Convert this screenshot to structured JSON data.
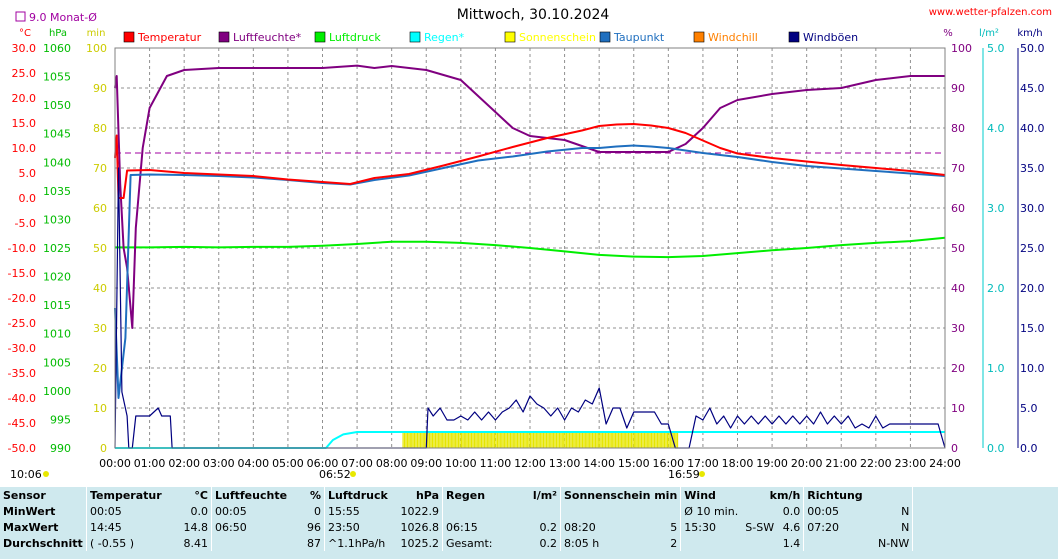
{
  "header": {
    "title": "Mittwoch, 30.10.2024",
    "site": "www.wetter-pfalzen.com",
    "monthly_avg": "9.0 Monat-Ø"
  },
  "chart_data": {
    "type": "line",
    "title": "Mittwoch, 30.10.2024",
    "x_ticks": [
      "00:00",
      "01:00",
      "02:00",
      "03:00",
      "04:00",
      "05:00",
      "06:00",
      "07:00",
      "08:00",
      "09:00",
      "10:00",
      "11:00",
      "12:00",
      "13:00",
      "14:00",
      "15:00",
      "16:00",
      "17:00",
      "18:00",
      "19:00",
      "20:00",
      "21:00",
      "22:00",
      "23:00",
      "24:00"
    ],
    "axes": {
      "temp": {
        "unit": "°C",
        "min": -50,
        "max": 30,
        "ticks": [
          "30.0",
          "25.0",
          "20.0",
          "15.0",
          "10.0",
          "5.0",
          "0.0",
          "-5.0",
          "-10.0",
          "-15.0",
          "-20.0",
          "-25.0",
          "-30.0",
          "-35.0",
          "-40.0",
          "-45.0",
          "-50.0"
        ]
      },
      "pressure": {
        "unit": "hPa",
        "min": 990,
        "max": 1060,
        "ticks": [
          "1060",
          "1055",
          "1050",
          "1045",
          "1040",
          "1035",
          "1030",
          "1025",
          "1020",
          "1015",
          "1010",
          "1005",
          "1000",
          "995",
          "990"
        ]
      },
      "sun_min": {
        "unit": "min",
        "min": 0,
        "max": 100,
        "ticks": [
          "100",
          "90",
          "80",
          "70",
          "60",
          "50",
          "40",
          "30",
          "20",
          "10",
          "0"
        ]
      },
      "humidity": {
        "unit": "%",
        "min": 0,
        "max": 100,
        "ticks": [
          "100",
          "90",
          "80",
          "70",
          "60",
          "50",
          "40",
          "30",
          "20",
          "10",
          "0"
        ]
      },
      "rain": {
        "unit": "l/m²",
        "min": 0,
        "max": 5,
        "ticks": [
          "5.0",
          "4.0",
          "3.0",
          "2.0",
          "1.0",
          "0.0"
        ]
      },
      "wind": {
        "unit": "km/h",
        "min": 0,
        "max": 50,
        "ticks": [
          "50.0",
          "45.0",
          "40.0",
          "35.0",
          "30.0",
          "25.0",
          "20.0",
          "15.0",
          "10.0",
          "5.0",
          "0.0"
        ]
      }
    },
    "monthly_avg_temp": 9.0,
    "legend": [
      {
        "name": "Temperatur",
        "color": "#ff0000"
      },
      {
        "name": "Luftfeuchte*",
        "color": "#800080"
      },
      {
        "name": "Luftdruck",
        "color": "#00ee00"
      },
      {
        "name": "Regen*",
        "color": "#00ffff"
      },
      {
        "name": "Sonnenschein",
        "color": "#ffff00"
      },
      {
        "name": "Taupunkt",
        "color": "#1f6fbf"
      },
      {
        "name": "Windchill",
        "color": "#ff8000"
      },
      {
        "name": "Windböen",
        "color": "#000080"
      }
    ],
    "series": [
      {
        "name": "Temperatur",
        "axis": "temp",
        "color": "#ff0000",
        "x": [
          0,
          0.05,
          0.1,
          0.25,
          0.35,
          1,
          2,
          3,
          4,
          5,
          6,
          6.8,
          7.5,
          8.5,
          9.5,
          10.5,
          11.5,
          12.5,
          13.5,
          14,
          14.5,
          15,
          15.5,
          16,
          16.5,
          17,
          17.5,
          18,
          19,
          20,
          21,
          22,
          23,
          24
        ],
        "y": [
          8,
          12.5,
          0,
          0,
          5.5,
          5.6,
          5.0,
          4.7,
          4.4,
          3.7,
          3.2,
          2.8,
          4.0,
          4.8,
          6.5,
          8.3,
          10.2,
          12.0,
          13.5,
          14.4,
          14.7,
          14.8,
          14.5,
          14.0,
          13.0,
          11.5,
          10.0,
          8.9,
          8.0,
          7.3,
          6.6,
          6.0,
          5.4,
          4.6
        ]
      },
      {
        "name": "Luftfeuchte*",
        "axis": "humidity",
        "color": "#800080",
        "x": [
          0,
          0.05,
          0.15,
          0.25,
          0.35,
          0.5,
          0.6,
          0.8,
          1.0,
          1.5,
          2,
          3,
          4,
          6,
          7.0,
          7.5,
          8,
          9,
          10,
          11,
          11.5,
          12,
          12.5,
          13,
          14,
          15,
          16,
          16.5,
          17,
          17.5,
          18,
          19,
          20,
          21,
          22,
          23,
          24
        ],
        "y": [
          90,
          93,
          66,
          50,
          45,
          30,
          55,
          75,
          85,
          93,
          94.5,
          95,
          95,
          95,
          95.6,
          95,
          95.5,
          94.5,
          92,
          84,
          80,
          78,
          77.5,
          77,
          74,
          74,
          74,
          76,
          80,
          85,
          87,
          88.5,
          89.5,
          90,
          92,
          93,
          93
        ]
      },
      {
        "name": "Luftdruck",
        "axis": "pressure",
        "color": "#00ee00",
        "x": [
          0,
          1,
          2,
          3,
          4,
          5,
          6,
          7,
          8,
          9,
          10,
          11,
          12,
          13,
          14,
          15,
          16,
          17,
          18,
          19,
          20,
          21,
          22,
          23,
          24
        ],
        "y": [
          1025.1,
          1025.1,
          1025.2,
          1025.1,
          1025.2,
          1025.2,
          1025.4,
          1025.7,
          1026.1,
          1026.1,
          1025.9,
          1025.5,
          1025.0,
          1024.4,
          1023.8,
          1023.5,
          1023.4,
          1023.6,
          1024.1,
          1024.6,
          1025.0,
          1025.5,
          1025.9,
          1026.2,
          1026.8
        ]
      },
      {
        "name": "Taupunkt",
        "axis": "temp",
        "color": "#1f6fbf",
        "x": [
          0,
          0.1,
          0.3,
          0.45,
          1,
          2,
          3,
          4,
          5,
          6,
          6.8,
          7.5,
          8.5,
          9.5,
          10.5,
          11.5,
          12.5,
          13.5,
          14,
          14.5,
          15,
          15.5,
          16,
          17,
          18,
          19,
          20,
          21,
          22,
          23,
          24
        ],
        "y": [
          -22,
          -40,
          -28,
          4.6,
          4.7,
          4.6,
          4.4,
          4.1,
          3.6,
          3.0,
          2.7,
          3.6,
          4.5,
          6.0,
          7.5,
          8.3,
          9.3,
          10.0,
          10.0,
          10.3,
          10.5,
          10.3,
          10.0,
          9.0,
          8.2,
          7.2,
          6.4,
          5.9,
          5.4,
          4.9,
          4.4
        ]
      },
      {
        "name": "Regen*",
        "axis": "rain",
        "color": "#00ffff",
        "x": [
          0,
          6.1,
          6.3,
          6.6,
          7.0,
          7.5,
          8,
          9,
          10,
          11,
          12,
          13,
          14,
          15,
          16,
          17,
          18,
          19,
          20,
          21,
          22,
          23,
          24
        ],
        "y": [
          0,
          0,
          0.1,
          0.17,
          0.2,
          0.2,
          0.2,
          0.2,
          0.2,
          0.2,
          0.2,
          0.2,
          0.2,
          0.2,
          0.2,
          0.2,
          0.2,
          0.2,
          0.2,
          0.2,
          0.2,
          0.2,
          0.2
        ]
      },
      {
        "name": "Windböen",
        "axis": "wind",
        "color": "#000080",
        "x": [
          0,
          0.1,
          0.2,
          0.35,
          0.4,
          0.5,
          0.6,
          0.9,
          1,
          1.25,
          1.35,
          1.6,
          1.65,
          2,
          9,
          9.05,
          9.2,
          9.4,
          9.6,
          9.8,
          10,
          10.2,
          10.4,
          10.6,
          10.8,
          11,
          11.2,
          11.4,
          11.6,
          11.8,
          12,
          12.2,
          12.4,
          12.6,
          12.8,
          13,
          13.2,
          13.4,
          13.6,
          13.8,
          14,
          14.2,
          14.4,
          14.6,
          14.8,
          15,
          15.2,
          15.4,
          15.6,
          15.8,
          16,
          16.2,
          16.4,
          16.6,
          16.8,
          17,
          17.2,
          17.4,
          17.6,
          17.8,
          18,
          18.2,
          18.4,
          18.6,
          18.8,
          19,
          19.2,
          19.4,
          19.6,
          19.8,
          20,
          20.2,
          20.4,
          20.6,
          20.8,
          21,
          21.2,
          21.4,
          21.6,
          21.8,
          22,
          22.2,
          22.4,
          22.6,
          22.8,
          23,
          23.2,
          23.4,
          23.6,
          23.8,
          24
        ],
        "y": [
          0,
          35,
          7,
          4,
          0,
          0,
          4,
          4,
          4,
          5,
          4,
          4,
          0,
          0,
          0,
          5,
          4,
          5,
          3.5,
          3.5,
          4,
          3.5,
          4.5,
          3.5,
          4.5,
          3.5,
          4.5,
          5,
          6,
          4.5,
          6.5,
          5.5,
          5,
          4,
          5,
          3.5,
          5,
          4.5,
          6,
          5.5,
          7.5,
          3,
          5,
          5,
          2.5,
          4.5,
          4.5,
          4.5,
          4.5,
          3,
          3,
          0,
          0,
          0,
          4,
          3.5,
          5,
          3,
          4,
          2.5,
          4,
          3,
          4,
          3,
          4,
          3,
          4,
          3,
          4,
          3,
          4,
          3,
          4.5,
          3,
          4,
          3,
          4,
          2.5,
          3,
          2.5,
          4,
          2.5,
          3,
          3,
          3,
          3,
          3,
          3,
          3,
          3,
          0
        ]
      },
      {
        "name": "Sonnenschein",
        "axis": "sun_min",
        "color": "#ffff00",
        "bars": [
          [
            8.33,
            9.1
          ],
          [
            9.1,
            16.3
          ]
        ]
      }
    ]
  },
  "markers": {
    "sunrise_left": "10:06",
    "sunrise_time": "06:52",
    "sunset_time": "16:59"
  },
  "stats": {
    "headers": {
      "sensor": "Sensor",
      "temperature": "Temperatur",
      "temperature_unit": "°C",
      "humidity": "Luftfeuchte",
      "humidity_unit": "%",
      "pressure": "Luftdruck",
      "pressure_unit": "hPa",
      "rain": "Regen",
      "rain_unit": "l/m²",
      "sunshine": "Sonnenschein min",
      "wind": "Wind",
      "wind_unit": "km/h",
      "direction": "Richtung"
    },
    "rows": [
      {
        "label": "MinWert",
        "t_time": "00:05",
        "t_val": "0.0",
        "h_time": "00:05",
        "h_val": "0",
        "p_time": "15:55",
        "p_val": "1022.9",
        "r_time": "",
        "r_val": "",
        "s_time": "",
        "s_val": "",
        "w_time": "Ø 10 min.",
        "w_dir": "",
        "w_val": "0.0",
        "d_time": "00:05",
        "d_val": "N"
      },
      {
        "label": "MaxWert",
        "t_time": "14:45",
        "t_val": "14.8",
        "h_time": "06:50",
        "h_val": "96",
        "p_time": "23:50",
        "p_val": "1026.8",
        "r_time": "06:15",
        "r_val": "0.2",
        "s_time": "08:20",
        "s_val": "5",
        "w_time": "15:30",
        "w_dir": "S-SW",
        "w_val": "4.6",
        "d_time": "07:20",
        "d_val": "N"
      },
      {
        "label": "Durchschnitt",
        "t_time": "( -0.55 )",
        "t_val": "8.41",
        "h_time": "",
        "h_val": "87",
        "p_time": "^1.1hPa/h",
        "p_val": "1025.2",
        "r_time": "Gesamt:",
        "r_val": "0.2",
        "s_time": "8:05 h",
        "s_val": "2",
        "w_time": "",
        "w_dir": "",
        "w_val": "1.4",
        "d_time": "",
        "d_val": "N-NW"
      }
    ]
  }
}
